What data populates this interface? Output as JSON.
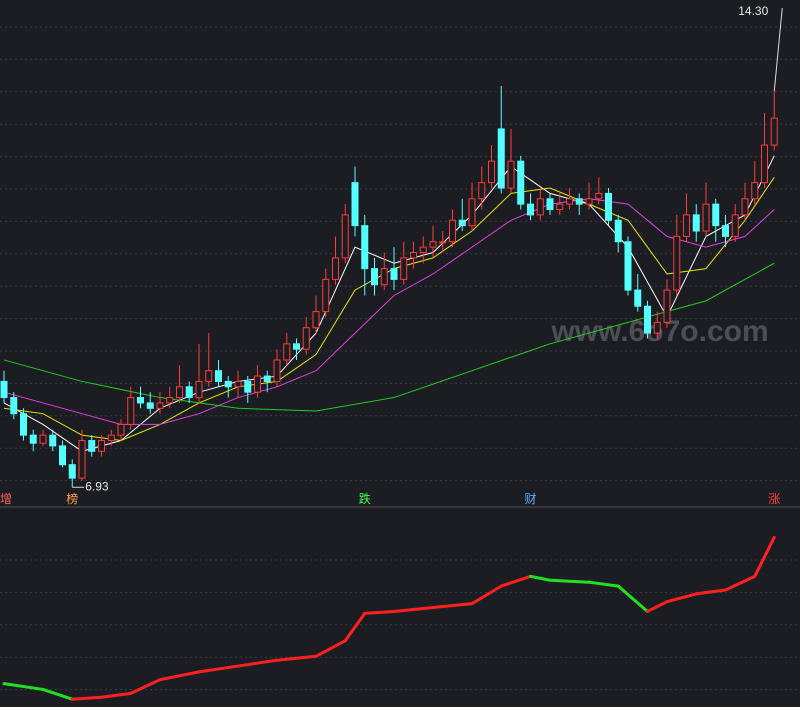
{
  "chart_data": {
    "type": "candlestick",
    "ylim": [
      6.6,
      16.0
    ],
    "up_color": "#ff3b3b",
    "down_color": "#54ffff",
    "candles": [
      [
        8.9,
        9.1,
        8.5,
        8.6
      ],
      [
        8.6,
        8.7,
        8.2,
        8.3
      ],
      [
        8.3,
        8.4,
        7.8,
        7.9
      ],
      [
        7.9,
        8.0,
        7.6,
        7.75
      ],
      [
        7.75,
        8.0,
        7.7,
        7.9
      ],
      [
        7.9,
        8.0,
        7.6,
        7.7
      ],
      [
        7.7,
        7.8,
        7.3,
        7.35
      ],
      [
        7.35,
        7.45,
        6.93,
        7.1
      ],
      [
        7.1,
        8.0,
        7.05,
        7.8
      ],
      [
        7.8,
        7.9,
        7.5,
        7.6
      ],
      [
        7.6,
        7.9,
        7.5,
        7.8
      ],
      [
        7.8,
        8.0,
        7.7,
        7.9
      ],
      [
        7.9,
        8.2,
        7.8,
        8.1
      ],
      [
        8.1,
        8.8,
        8.0,
        8.6
      ],
      [
        8.6,
        8.8,
        8.4,
        8.5
      ],
      [
        8.5,
        8.7,
        8.3,
        8.4
      ],
      [
        8.4,
        8.7,
        8.3,
        8.5
      ],
      [
        8.5,
        8.8,
        8.4,
        8.6
      ],
      [
        8.6,
        9.2,
        8.5,
        8.8
      ],
      [
        8.8,
        8.9,
        8.5,
        8.6
      ],
      [
        8.6,
        9.6,
        8.5,
        8.9
      ],
      [
        8.9,
        9.8,
        8.8,
        9.1
      ],
      [
        9.1,
        9.3,
        8.8,
        8.9
      ],
      [
        8.9,
        9.0,
        8.6,
        8.8
      ],
      [
        8.8,
        9.1,
        8.6,
        8.9
      ],
      [
        8.9,
        9.0,
        8.5,
        8.7
      ],
      [
        8.7,
        9.2,
        8.6,
        9.0
      ],
      [
        9.0,
        9.1,
        8.7,
        8.9
      ],
      [
        8.9,
        9.5,
        8.8,
        9.3
      ],
      [
        9.3,
        9.8,
        9.2,
        9.6
      ],
      [
        9.6,
        9.7,
        9.3,
        9.5
      ],
      [
        9.5,
        10.1,
        9.4,
        9.9
      ],
      [
        9.9,
        10.5,
        9.8,
        10.2
      ],
      [
        10.2,
        11.0,
        10.1,
        10.8
      ],
      [
        10.8,
        11.6,
        10.7,
        11.2
      ],
      [
        11.2,
        12.2,
        11.1,
        12.0
      ],
      [
        12.6,
        12.9,
        11.6,
        11.8
      ],
      [
        11.8,
        12.0,
        10.5,
        11.0
      ],
      [
        11.0,
        11.2,
        10.5,
        10.7
      ],
      [
        10.7,
        11.3,
        10.6,
        11.0
      ],
      [
        11.0,
        11.4,
        10.6,
        10.8
      ],
      [
        10.8,
        11.5,
        10.7,
        11.2
      ],
      [
        11.2,
        11.5,
        11.0,
        11.3
      ],
      [
        11.3,
        11.6,
        11.1,
        11.4
      ],
      [
        11.4,
        11.8,
        11.2,
        11.5
      ],
      [
        11.5,
        11.7,
        11.3,
        11.5
      ],
      [
        11.5,
        12.1,
        11.4,
        11.9
      ],
      [
        11.9,
        12.3,
        11.7,
        11.8
      ],
      [
        11.8,
        12.6,
        11.7,
        12.3
      ],
      [
        12.3,
        12.9,
        12.1,
        12.6
      ],
      [
        12.6,
        13.3,
        12.5,
        13.0
      ],
      [
        13.6,
        14.4,
        12.4,
        12.5
      ],
      [
        12.5,
        13.6,
        12.4,
        13.0
      ],
      [
        13.0,
        13.1,
        12.1,
        12.2
      ],
      [
        12.2,
        12.4,
        11.9,
        12.0
      ],
      [
        12.0,
        12.5,
        11.9,
        12.3
      ],
      [
        12.3,
        12.4,
        12.0,
        12.1
      ],
      [
        12.1,
        12.4,
        12.0,
        12.2
      ],
      [
        12.2,
        12.5,
        12.1,
        12.3
      ],
      [
        12.3,
        12.4,
        12.0,
        12.2
      ],
      [
        12.2,
        12.6,
        12.1,
        12.3
      ],
      [
        12.3,
        12.7,
        12.2,
        12.4
      ],
      [
        12.4,
        12.5,
        11.8,
        11.9
      ],
      [
        11.9,
        12.0,
        11.3,
        11.5
      ],
      [
        11.5,
        11.6,
        10.5,
        10.6
      ],
      [
        10.6,
        10.9,
        10.2,
        10.3
      ],
      [
        10.3,
        10.4,
        9.7,
        9.8
      ],
      [
        9.8,
        10.2,
        9.7,
        10.0
      ],
      [
        10.0,
        10.8,
        9.9,
        10.6
      ],
      [
        10.6,
        12.0,
        10.5,
        11.6
      ],
      [
        11.6,
        12.4,
        11.5,
        12.0
      ],
      [
        12.0,
        12.2,
        11.5,
        11.7
      ],
      [
        11.7,
        12.6,
        11.6,
        12.2
      ],
      [
        12.2,
        12.3,
        11.5,
        11.8
      ],
      [
        11.8,
        12.0,
        11.4,
        11.6
      ],
      [
        11.6,
        12.2,
        11.5,
        12.0
      ],
      [
        12.0,
        12.6,
        11.9,
        12.3
      ],
      [
        12.3,
        13.0,
        12.2,
        12.6
      ],
      [
        12.6,
        13.9,
        12.5,
        13.3
      ],
      [
        13.3,
        14.3,
        13.2,
        13.8
      ]
    ],
    "ma": [
      {
        "color": "#ffffff",
        "x": [
          0,
          4,
          8,
          12,
          16,
          20,
          24,
          28,
          32,
          36,
          40,
          44,
          48,
          52,
          56,
          60,
          64,
          68,
          72,
          76,
          79
        ],
        "values": [
          8.5,
          8.1,
          7.6,
          7.8,
          8.4,
          8.7,
          8.9,
          9.0,
          9.8,
          11.4,
          11.1,
          11.3,
          12.0,
          12.9,
          12.4,
          12.2,
          11.4,
          10.1,
          11.6,
          12.0,
          13.1
        ]
      },
      {
        "color": "#e8e800",
        "x": [
          0,
          4,
          8,
          12,
          16,
          20,
          24,
          28,
          32,
          36,
          40,
          44,
          48,
          52,
          56,
          60,
          64,
          68,
          72,
          76,
          79
        ],
        "values": [
          8.4,
          8.3,
          7.9,
          7.8,
          8.1,
          8.5,
          8.8,
          8.9,
          9.4,
          10.6,
          11.0,
          11.2,
          11.7,
          12.4,
          12.5,
          12.2,
          11.9,
          10.9,
          11.0,
          11.9,
          12.7
        ]
      },
      {
        "color": "#e040e0",
        "x": [
          0,
          4,
          8,
          12,
          16,
          20,
          24,
          28,
          32,
          36,
          40,
          44,
          48,
          52,
          56,
          60,
          64,
          68,
          72,
          76,
          79
        ],
        "values": [
          8.7,
          8.5,
          8.3,
          8.1,
          8.1,
          8.3,
          8.6,
          8.8,
          9.1,
          9.8,
          10.5,
          10.9,
          11.4,
          11.9,
          12.2,
          12.3,
          12.2,
          11.6,
          11.4,
          11.6,
          12.1
        ]
      },
      {
        "color": "#22cc22",
        "x": [
          0,
          8,
          16,
          24,
          32,
          40,
          48,
          56,
          64,
          72,
          79
        ],
        "values": [
          9.3,
          8.9,
          8.6,
          8.4,
          8.35,
          8.6,
          9.1,
          9.6,
          10.0,
          10.4,
          11.1
        ]
      }
    ],
    "high_label": {
      "index": 79,
      "value": 14.3,
      "label": "14.30"
    },
    "low_label": {
      "index": 7,
      "value": 6.93
    },
    "markers": [
      {
        "index": 0,
        "label": "增",
        "color": "#ff6060"
      },
      {
        "index": 7,
        "label": "榜",
        "color": "#ffa040"
      },
      {
        "index": 37,
        "label": "跌",
        "color": "#40ff40"
      },
      {
        "index": 54,
        "label": "财",
        "color": "#60b0ff"
      },
      {
        "index": 79,
        "label": "涨",
        "color": "#ff4040"
      }
    ],
    "watermark": "www.6o7o.com",
    "indicator": {
      "ylim": [
        0,
        100
      ],
      "up_color": "#ff2020",
      "down_color": "#20e020",
      "x": [
        0,
        4,
        7,
        10,
        13,
        16,
        20,
        24,
        28,
        32,
        35,
        37,
        40,
        44,
        48,
        51,
        54,
        56,
        60,
        63,
        66,
        68,
        71,
        74,
        77,
        79
      ],
      "values": [
        12,
        9,
        4,
        5,
        7,
        14,
        18,
        21,
        24,
        26,
        34,
        48,
        49,
        51,
        53,
        62,
        67,
        65,
        64,
        62,
        49,
        54,
        58,
        60,
        67,
        87
      ]
    }
  }
}
